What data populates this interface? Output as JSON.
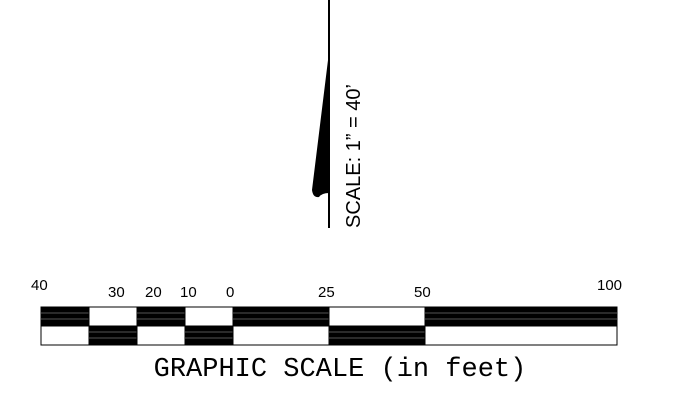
{
  "scale_note": "SCALE: 1” = 40’",
  "graphic_scale": {
    "labels": [
      "40",
      "30",
      "20",
      "10",
      "0",
      "25",
      "50",
      "100"
    ],
    "caption": "GRAPHIC SCALE (in feet)"
  }
}
